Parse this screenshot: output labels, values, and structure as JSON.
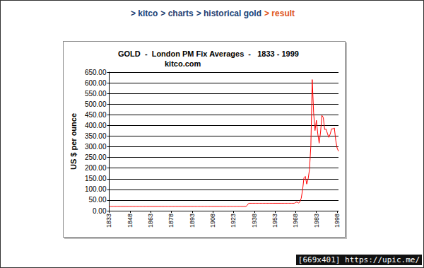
{
  "header": {
    "breadcrumb": [
      "> kitco",
      "> charts",
      "> historical gold",
      "> result"
    ]
  },
  "chart_data": {
    "type": "line",
    "title": "GOLD  -  London PM Fix Averages  -   1833 - 1999",
    "subtitle": "kitco.com",
    "y_label": "US $ per ounce",
    "color": "#ff0000",
    "grid": true,
    "x": [
      1833,
      1834,
      1835,
      1836,
      1837,
      1838,
      1839,
      1840,
      1841,
      1842,
      1843,
      1844,
      1845,
      1846,
      1847,
      1848,
      1849,
      1850,
      1851,
      1852,
      1853,
      1854,
      1855,
      1856,
      1857,
      1858,
      1859,
      1860,
      1861,
      1862,
      1863,
      1864,
      1865,
      1866,
      1867,
      1868,
      1869,
      1870,
      1871,
      1872,
      1873,
      1874,
      1875,
      1876,
      1877,
      1878,
      1879,
      1880,
      1881,
      1882,
      1883,
      1884,
      1885,
      1886,
      1887,
      1888,
      1889,
      1890,
      1891,
      1892,
      1893,
      1894,
      1895,
      1896,
      1897,
      1898,
      1899,
      1900,
      1901,
      1902,
      1903,
      1904,
      1905,
      1906,
      1907,
      1908,
      1909,
      1910,
      1911,
      1912,
      1913,
      1914,
      1915,
      1916,
      1917,
      1918,
      1919,
      1920,
      1921,
      1922,
      1923,
      1924,
      1925,
      1926,
      1927,
      1928,
      1929,
      1930,
      1931,
      1932,
      1933,
      1934,
      1935,
      1936,
      1937,
      1938,
      1939,
      1940,
      1941,
      1942,
      1943,
      1944,
      1945,
      1946,
      1947,
      1948,
      1949,
      1950,
      1951,
      1952,
      1953,
      1954,
      1955,
      1956,
      1957,
      1958,
      1959,
      1960,
      1961,
      1962,
      1963,
      1964,
      1965,
      1966,
      1967,
      1968,
      1969,
      1970,
      1971,
      1972,
      1973,
      1974,
      1975,
      1976,
      1977,
      1978,
      1979,
      1980,
      1981,
      1982,
      1983,
      1984,
      1985,
      1986,
      1987,
      1988,
      1989,
      1990,
      1991,
      1992,
      1993,
      1994,
      1995,
      1996,
      1997,
      1998,
      1999
    ],
    "values": [
      20,
      20,
      20,
      20,
      20,
      20,
      20,
      20,
      20,
      20,
      20,
      20,
      20,
      20,
      20,
      20,
      20,
      20,
      20,
      20,
      20,
      20,
      20,
      20,
      20,
      20,
      20,
      20,
      20,
      20,
      20,
      20,
      20,
      20,
      20,
      20,
      20,
      20,
      20,
      20,
      20,
      20,
      20,
      20,
      20,
      20,
      20,
      20,
      20,
      20,
      20,
      20,
      20,
      20,
      20,
      20,
      20,
      20,
      20,
      20,
      20,
      20,
      20,
      20,
      20,
      20,
      20,
      20,
      20,
      20,
      20,
      20,
      20,
      20,
      20,
      20,
      20,
      20,
      20,
      20,
      20,
      20,
      20,
      20,
      20,
      20,
      20,
      20,
      20,
      20,
      20,
      20,
      20,
      20,
      20,
      20,
      20,
      20,
      20,
      20,
      26,
      35,
      35,
      35,
      35,
      35,
      35,
      35,
      35,
      35,
      35,
      35,
      35,
      35,
      35,
      35,
      35,
      35,
      35,
      35,
      35,
      35,
      35,
      35,
      35,
      35,
      35,
      35,
      35,
      35,
      35,
      35,
      35,
      35,
      35,
      39,
      41,
      36,
      41,
      58,
      97,
      154,
      161,
      125,
      148,
      193,
      306,
      615,
      460,
      376,
      424,
      361,
      317,
      368,
      447,
      437,
      381,
      383,
      362,
      344,
      360,
      384,
      384,
      388,
      331,
      294,
      279
    ],
    "xlim": [
      1833,
      1999
    ],
    "xticks": [
      1833,
      1848,
      1863,
      1878,
      1893,
      1908,
      1923,
      1938,
      1953,
      1968,
      1983,
      1998
    ],
    "ylim": [
      0,
      650
    ],
    "yticks": [
      {
        "value": 0,
        "label": "0.00"
      },
      {
        "value": 50,
        "label": "50.00"
      },
      {
        "value": 100,
        "label": "100.00"
      },
      {
        "value": 150,
        "label": "150.00"
      },
      {
        "value": 200,
        "label": "200.00"
      },
      {
        "value": 250,
        "label": "250.00"
      },
      {
        "value": 300,
        "label": "300.00"
      },
      {
        "value": 350,
        "label": "350.00"
      },
      {
        "value": 400,
        "label": "400.00"
      },
      {
        "value": 450,
        "label": "450.00"
      },
      {
        "value": 500,
        "label": "500.00"
      },
      {
        "value": 550,
        "label": "550.00"
      },
      {
        "value": 600,
        "label": "600.00"
      },
      {
        "value": 650,
        "label": "650.00"
      }
    ]
  },
  "footer": "[669x401] https://upic.me/"
}
